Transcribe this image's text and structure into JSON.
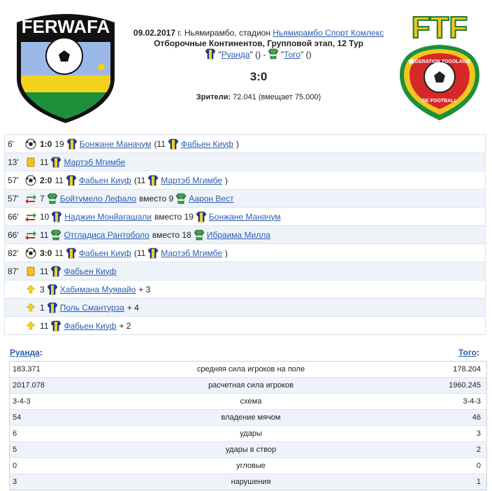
{
  "logos": {
    "home": "FERWAFA",
    "away": "FTF",
    "away_ring_top": "FEDERATION TOGOLAISE",
    "away_ring_bottom": "DE FOOTBALL"
  },
  "header": {
    "date": "09.02.2017",
    "venue": "г. Ньямирамбо, стадион",
    "stadium": "Ньямирамбо Спорт Комлекс",
    "tournament": "Отборочные Континентов, Групповой этап, 12 Тур",
    "quote": "\"",
    "home": "Руанда",
    "home_note": "()",
    "dash": "-",
    "away": "Того",
    "away_note": "()",
    "score": "3:0",
    "attendance_label": "Зрители:",
    "attendance": "72.041 (вмещает 75.000)"
  },
  "events": [
    {
      "minute": "6'",
      "type": "goal",
      "segments": [
        {
          "kind": "bold",
          "text": "1:0"
        },
        {
          "kind": "text",
          "text": "19"
        },
        {
          "kind": "shirt",
          "team": "home"
        },
        {
          "kind": "link",
          "text": "Бонжане Маначум"
        },
        {
          "kind": "text",
          "text": "(11"
        },
        {
          "kind": "shirt",
          "team": "home"
        },
        {
          "kind": "link",
          "text": "Фабьен Киуф"
        },
        {
          "kind": "text",
          "text": ")"
        }
      ]
    },
    {
      "minute": "13'",
      "type": "yellow",
      "segments": [
        {
          "kind": "text",
          "text": "11"
        },
        {
          "kind": "shirt",
          "team": "home"
        },
        {
          "kind": "link",
          "text": "Мартэб Мгимбе"
        }
      ]
    },
    {
      "minute": "57'",
      "type": "goal",
      "segments": [
        {
          "kind": "bold",
          "text": "2:0"
        },
        {
          "kind": "text",
          "text": "11"
        },
        {
          "kind": "shirt",
          "team": "home"
        },
        {
          "kind": "link",
          "text": "Фабьен Киуф"
        },
        {
          "kind": "text",
          "text": "(11"
        },
        {
          "kind": "shirt",
          "team": "home"
        },
        {
          "kind": "link",
          "text": "Мартэб Мгимбе"
        },
        {
          "kind": "text",
          "text": ")"
        }
      ]
    },
    {
      "minute": "57'",
      "type": "sub",
      "segments": [
        {
          "kind": "text",
          "text": "7"
        },
        {
          "kind": "shirt",
          "team": "away"
        },
        {
          "kind": "link",
          "text": "Бойтумело Лефало"
        },
        {
          "kind": "text",
          "text": "вместо 9"
        },
        {
          "kind": "shirt",
          "team": "away"
        },
        {
          "kind": "link",
          "text": "Аарон Вест"
        }
      ]
    },
    {
      "minute": "66'",
      "type": "sub",
      "segments": [
        {
          "kind": "text",
          "text": "10"
        },
        {
          "kind": "shirt",
          "team": "home"
        },
        {
          "kind": "link",
          "text": "Наджин Монйагашали"
        },
        {
          "kind": "text",
          "text": "вместо 19"
        },
        {
          "kind": "shirt",
          "team": "home"
        },
        {
          "kind": "link",
          "text": "Бонжане Маначум"
        }
      ]
    },
    {
      "minute": "66'",
      "type": "sub",
      "segments": [
        {
          "kind": "text",
          "text": "11"
        },
        {
          "kind": "shirt",
          "team": "away"
        },
        {
          "kind": "link",
          "text": "Отгладиса Рантоболо"
        },
        {
          "kind": "text",
          "text": "вместо 18"
        },
        {
          "kind": "shirt",
          "team": "away"
        },
        {
          "kind": "link",
          "text": "Ибраима Милла"
        }
      ]
    },
    {
      "minute": "82'",
      "type": "goal",
      "segments": [
        {
          "kind": "bold",
          "text": "3:0"
        },
        {
          "kind": "text",
          "text": "11"
        },
        {
          "kind": "shirt",
          "team": "home"
        },
        {
          "kind": "link",
          "text": "Фабьен Киуф"
        },
        {
          "kind": "text",
          "text": "(11"
        },
        {
          "kind": "shirt",
          "team": "home"
        },
        {
          "kind": "link",
          "text": "Мартэб Мгимбе"
        },
        {
          "kind": "text",
          "text": ")"
        }
      ]
    },
    {
      "minute": "87'",
      "type": "yellow",
      "segments": [
        {
          "kind": "text",
          "text": "11"
        },
        {
          "kind": "shirt",
          "team": "home"
        },
        {
          "kind": "link",
          "text": "Фабьен Киуф"
        }
      ]
    },
    {
      "type": "rating",
      "segments": [
        {
          "kind": "text",
          "text": "3"
        },
        {
          "kind": "shirt",
          "team": "home"
        },
        {
          "kind": "link",
          "text": "Хабимана Муявайо"
        },
        {
          "kind": "text",
          "text": "+ 3"
        }
      ]
    },
    {
      "type": "rating",
      "segments": [
        {
          "kind": "text",
          "text": "1"
        },
        {
          "kind": "shirt",
          "team": "home"
        },
        {
          "kind": "link",
          "text": "Поль Смантурза"
        },
        {
          "kind": "text",
          "text": "+ 4"
        }
      ]
    },
    {
      "type": "rating",
      "segments": [
        {
          "kind": "text",
          "text": "11"
        },
        {
          "kind": "shirt",
          "team": "home"
        },
        {
          "kind": "link",
          "text": "Фабьен Киуф"
        },
        {
          "kind": "text",
          "text": "+ 2"
        }
      ]
    }
  ],
  "stats": {
    "home_team": "Руанда",
    "away_team": "Того",
    "separator": ":",
    "rows": [
      [
        "183.371",
        "средняя сила игроков на поле",
        "178.204"
      ],
      [
        "2017.078",
        "расчетная сила игроков",
        "1960.245"
      ],
      [
        "3-4-3",
        "схема",
        "3-4-3"
      ],
      [
        "54",
        "владение мячом",
        "46"
      ],
      [
        "6",
        "удары",
        "3"
      ],
      [
        "5",
        "удары в створ",
        "2"
      ],
      [
        "0",
        "угловые",
        "0"
      ],
      [
        "3",
        "нарушения",
        "1"
      ]
    ]
  }
}
